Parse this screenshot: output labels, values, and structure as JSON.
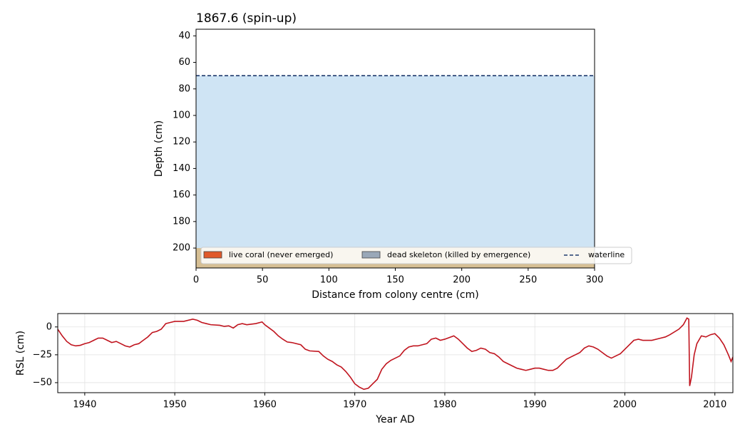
{
  "chart_data": [
    {
      "type": "profile",
      "title": "1867.6   (spin-up)",
      "xlabel": "Distance from colony centre (cm)",
      "ylabel": "Depth (cm)",
      "xlim": [
        0,
        300
      ],
      "xticks": [
        0,
        50,
        100,
        150,
        200,
        250,
        300
      ],
      "ylim": [
        215,
        35
      ],
      "yticks": [
        40,
        60,
        80,
        100,
        120,
        140,
        160,
        180,
        200
      ],
      "waterline": {
        "name": "waterline",
        "value": 70,
        "color": "#1f3a6e"
      },
      "sand_level": 200,
      "water_color": "#cfe4f4",
      "sand_color": "#d6bf94",
      "legend": [
        {
          "name": "live coral (never emerged)",
          "color": "#e05a2b"
        },
        {
          "name": "dead skeleton (killed by emergence)",
          "color": "#9aa8b8"
        }
      ]
    },
    {
      "type": "line",
      "xlabel": "Year AD",
      "ylabel": "RSL (cm)",
      "xlim": [
        1937,
        2012
      ],
      "xticks": [
        1940,
        1950,
        1960,
        1970,
        1980,
        1990,
        2000,
        2010
      ],
      "ylim": [
        -59,
        12
      ],
      "yticks": [
        {
          "value": -50,
          "label": "−50"
        },
        {
          "value": -25,
          "label": "−25"
        },
        0
      ],
      "grid": true,
      "color": "#c0141e",
      "x": [
        1937,
        1937.5,
        1938,
        1938.5,
        1939,
        1939.5,
        1940,
        1940.5,
        1941,
        1941.5,
        1942,
        1942.5,
        1943,
        1943.5,
        1944,
        1944.5,
        1945,
        1945.5,
        1946,
        1946.5,
        1947,
        1947.5,
        1948,
        1948.5,
        1949,
        1949.5,
        1950,
        1951,
        1952,
        1952.5,
        1953,
        1953.5,
        1954,
        1955,
        1955.5,
        1956,
        1956.5,
        1957,
        1957.5,
        1958,
        1959,
        1959.7,
        1960,
        1960.5,
        1961,
        1961.5,
        1962,
        1962.5,
        1963,
        1964,
        1964.5,
        1965,
        1966,
        1966.5,
        1967,
        1967.5,
        1968,
        1968.5,
        1969,
        1969.5,
        1970,
        1970.5,
        1971,
        1971.5,
        1972,
        1972.5,
        1973,
        1973.5,
        1974,
        1975,
        1975.5,
        1976,
        1976.5,
        1977,
        1977.5,
        1978,
        1978.5,
        1979,
        1979.5,
        1980,
        1981,
        1981.5,
        1982,
        1982.5,
        1983,
        1983.5,
        1984,
        1984.5,
        1985,
        1985.5,
        1986,
        1986.5,
        1987,
        1987.5,
        1988,
        1988.5,
        1989,
        1989.5,
        1990,
        1990.5,
        1991,
        1991.5,
        1992,
        1992.5,
        1993,
        1993.5,
        1994,
        1995,
        1995.5,
        1996,
        1996.5,
        1997,
        1997.5,
        1998,
        1998.5,
        1999,
        1999.5,
        2000,
        2000.5,
        2001,
        2001.5,
        2002,
        2003,
        2004,
        2004.5,
        2005,
        2006,
        2006.5,
        2006.9,
        2007.1,
        2007.2,
        2007.4,
        2007.7,
        2008,
        2008.5,
        2009,
        2009.5,
        2010,
        2010.5,
        2011,
        2011.5,
        2011.8,
        2012
      ],
      "values": [
        -2,
        -8,
        -13,
        -16,
        -17,
        -16.5,
        -15,
        -14,
        -12,
        -10,
        -10,
        -12,
        -14,
        -13,
        -15,
        -17,
        -18,
        -16,
        -15,
        -12,
        -9,
        -5,
        -4,
        -2,
        3,
        4,
        5,
        5,
        7,
        6,
        4,
        3,
        2,
        1.5,
        0.5,
        1,
        -1,
        2,
        3,
        2,
        3,
        4.5,
        2,
        -1,
        -4,
        -8,
        -11,
        -13.5,
        -14,
        -16,
        -20,
        -21.5,
        -22,
        -26,
        -29,
        -31,
        -34,
        -36,
        -40,
        -45,
        -51,
        -54,
        -56,
        -55,
        -51,
        -47,
        -38,
        -33,
        -30,
        -26,
        -21,
        -18,
        -17,
        -17,
        -16,
        -15,
        -11,
        -10,
        -12,
        -11,
        -8,
        -11,
        -15,
        -19,
        -22,
        -21,
        -19,
        -20,
        -23,
        -24,
        -27,
        -31,
        -33,
        -35,
        -37,
        -38,
        -39,
        -38,
        -37,
        -37,
        -38,
        -39,
        -39,
        -37,
        -33,
        -29,
        -27,
        -23,
        -19,
        -17,
        -18,
        -20,
        -23,
        -26,
        -28,
        -26,
        -24,
        -20,
        -16,
        -12,
        -11,
        -12,
        -12,
        -10,
        -9,
        -7,
        -2,
        2,
        8,
        7,
        -53,
        -45,
        -25,
        -15,
        -8,
        -9,
        -7,
        -6,
        -10,
        -16,
        -25,
        -31,
        -27
      ]
    }
  ]
}
